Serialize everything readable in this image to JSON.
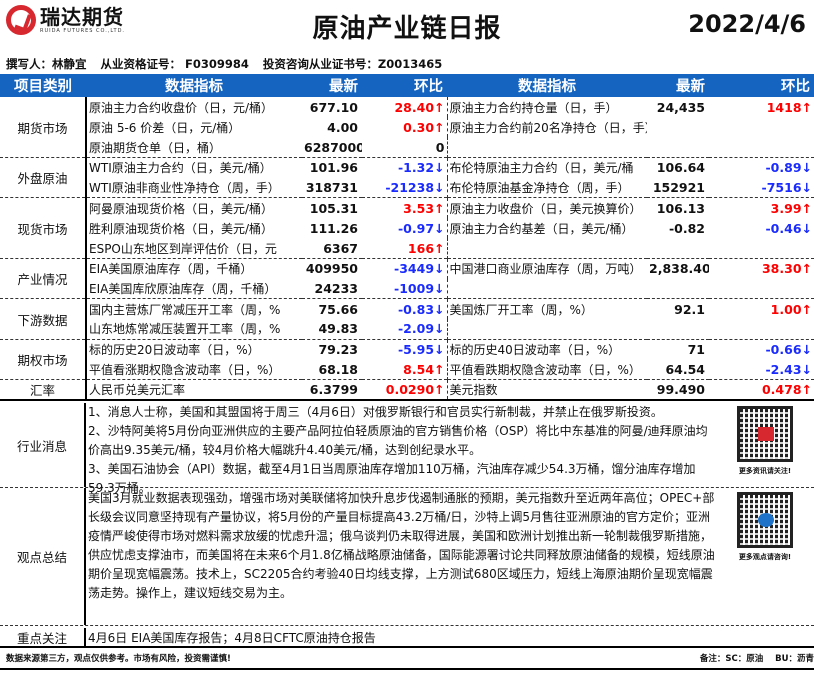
{
  "header": {
    "logo_cn": "瑞达期货",
    "logo_en": "RUIDA FUTURES CO.,LTD.",
    "title": "原油产业链日报",
    "date": "2022/4/6"
  },
  "author": {
    "writer": "撰写人：林静宜",
    "qualification": "从业资格证号： F0309984",
    "consult": "投资咨询从业证书号：Z0013465"
  },
  "table": {
    "headers": [
      "项目类别",
      "数据指标",
      "最新",
      "环比",
      "数据指标",
      "最新",
      "环比"
    ],
    "rows": [
      {
        "cat": "期货市场",
        "l": "原油主力合约收盘价（日，元/桶）",
        "lv": "677.10",
        "lc": "28.40↑",
        "ld": "up",
        "r": "原油主力合约持仓量（日，手）",
        "rv": "24,435",
        "rc": "1418↑",
        "rd": "up"
      },
      {
        "cat": "",
        "l": "原油 5-6 价差（日，元/桶）",
        "lv": "4.00",
        "lc": "0.30↑",
        "ld": "up",
        "r": "原油主力合约前20名净持仓（日，手）",
        "rv": "",
        "rc": "",
        "rd": ""
      },
      {
        "cat": "",
        "l": "原油期货仓单（日，桶）",
        "lv": "6287000",
        "lc": "0",
        "ld": "",
        "r": "",
        "rv": "",
        "rc": "",
        "rd": ""
      },
      {
        "cat": "外盘原油",
        "l": "WTI原油主力合约（日，美元/桶）",
        "lv": "101.96",
        "lc": "-1.32↓",
        "ld": "down",
        "r": "布伦特原油主力合约（日，美元/桶",
        "rv": "106.64",
        "rc": "-0.89↓",
        "rd": "down"
      },
      {
        "cat": "",
        "l": " WTI原油非商业性净持仓（周，手）",
        "lv": "318731",
        "lc": "-21238↓",
        "ld": "down",
        "r": "布伦特原油基金净持仓（周，手）",
        "rv": "152921",
        "rc": "-7516↓",
        "rd": "down"
      },
      {
        "cat": "现货市场",
        "l": "阿曼原油现货价格（日，美元/桶）",
        "lv": "105.31",
        "lc": "3.53↑",
        "ld": "up",
        "r": "原油主力收盘价（日，美元换算价）",
        "rv": "106.13",
        "rc": "3.99↑",
        "rd": "up"
      },
      {
        "cat": "",
        "l": "胜利原油现货价格（日，美元/桶）",
        "lv": "111.26",
        "lc": "-0.97↓",
        "ld": "down",
        "r": "原油主力合约基差（日，美元/桶）",
        "rv": "-0.82",
        "rc": "-0.46↓",
        "rd": "down"
      },
      {
        "cat": "",
        "l": "ESPO山东地区到岸评估价（日，元",
        "lv": "6367",
        "lc": "166↑",
        "ld": "up",
        "r": "",
        "rv": "",
        "rc": "",
        "rd": ""
      },
      {
        "cat": "产业情况",
        "l": "EIA美国原油库存（周，千桶）",
        "lv": "409950",
        "lc": "-3449↓",
        "ld": "down",
        "r": "中国港口商业原油库存（周，万吨）",
        "rv": "2,838.40",
        "rc": "38.30↑",
        "rd": "up"
      },
      {
        "cat": "",
        "l": "EIA美国库欣原油库存（周，千桶）",
        "lv": "24233",
        "lc": "-1009↓",
        "ld": "down",
        "r": "",
        "rv": "",
        "rc": "",
        "rd": ""
      },
      {
        "cat": "下游数据",
        "l": "国内主营炼厂常减压开工率（周，%",
        "lv": "75.66",
        "lc": "-0.83↓",
        "ld": "down",
        "r": "美国炼厂开工率（周，%）",
        "rv": "92.1",
        "rc": "1.00↑",
        "rd": "up"
      },
      {
        "cat": "",
        "l": "山东地炼常减压装置开工率（周，%",
        "lv": "49.83",
        "lc": "-2.09↓",
        "ld": "down",
        "r": "",
        "rv": "",
        "rc": "",
        "rd": ""
      },
      {
        "cat": "期权市场",
        "l": "标的历史20日波动率（日，%）",
        "lv": "79.23",
        "lc": "-5.95↓",
        "ld": "down",
        "r": "标的历史40日波动率（日，%）",
        "rv": "71",
        "rc": "-0.66↓",
        "rd": "down"
      },
      {
        "cat": "",
        "l": "平值看涨期权隐含波动率（日，%）",
        "lv": "68.18",
        "lc": "8.54↑",
        "ld": "up",
        "r": "平值看跌期权隐含波动率（日，%）",
        "rv": "64.54",
        "rc": "-2.43↓",
        "rd": "down"
      },
      {
        "cat": "汇率",
        "l": "人民币兑美元汇率",
        "lv": "6.3799",
        "lc": "0.0290↑",
        "ld": "up",
        "r": "美元指数",
        "rv": "99.490",
        "rc": "0.478↑",
        "rd": "up"
      }
    ]
  },
  "news": {
    "label": "行业消息",
    "text": "1、消息人士称，美国和其盟国将于周三（4月6日）对俄罗斯银行和官员实行新制裁，并禁止在俄罗斯投资。\n2、沙特阿美将5月份向亚洲供应的主要产品阿拉伯轻质原油的官方销售价格（OSP）将比中东基准的阿曼/迪拜原油均价高出9.35美元/桶，较4月价格大幅跳升4.40美元/桶，达到创纪录水平。\n3、美国石油协会（API）数据，截至4月1日当周原油库存增加110万桶，汽油库存减少54.3万桶，馏分油库存增加59.3万桶。",
    "qr_caption": "更多资讯请关注!"
  },
  "view": {
    "label": "观点总结",
    "text": "美国3月就业数据表现强劲，增强市场对美联储将加快升息步伐遏制通胀的预期，美元指数升至近两年高位；OPEC+部长级会议同意坚持现有产量协议，将5月份的产量目标提高43.2万桶/日，沙特上调5月售往亚洲原油的官方定价；亚洲疫情严峻使得市场对燃料需求放缓的忧虑升温；俄乌谈判仍未取得进展，美国和欧洲计划推出新一轮制裁俄罗斯措施，供应忧虑支撑油市，而美国将在未来6个月1.8亿桶战略原油储备，国际能源署讨论共同释放原油储备的规模，短线原油期价呈现宽幅震荡。技术上，SC2205合约考验40日均线支撑，上方测试680区域压力，短线上海原油期价呈现宽幅震荡走势。操作上，建议短线交易为主。",
    "qr_caption": "更多观点请咨询!"
  },
  "focus": {
    "label": "重点关注",
    "text": "4月6日 EIA美国库存报告；4月8日CFTC原油持仓报告"
  },
  "footer": {
    "disclaimer": "数据来源第三方，观点仅供参考。市场有风险，投资需谨慎!",
    "note": "备注：SC：原油    BU：沥青"
  },
  "colors": {
    "header_blue": "#1565c0",
    "up": "#ff0000",
    "down": "#1a2bff",
    "brand_red": "#d7282f"
  }
}
